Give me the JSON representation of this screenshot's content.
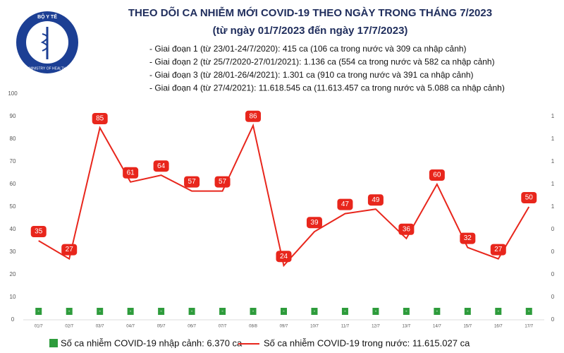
{
  "logo": {
    "top": "BỘ Y TẾ",
    "bottom": "MINISTRY OF HEALTH"
  },
  "chart_data": {
    "type": "line",
    "title": "THEO DÕI CA NHIỄM MỚI COVID-19 THEO NGÀY TRONG THÁNG 7/2023",
    "subtitle": "(từ ngày 01/7/2023 đến ngày 17/7/2023)",
    "annotations": [
      "- Giai đoạn 1 (từ 23/01-24/7/2020): 415 ca (106 ca trong nước và 309 ca nhập cảnh)",
      "- Giai đoạn 2 (từ 25/7/2020-27/01/2021): 1.136 ca (554 ca trong nước và 582 ca nhập cảnh)",
      "- Giai đoạn 3 (từ 28/01-26/4/2021): 1.301 ca (910 ca trong nước và 391 ca nhập cảnh)",
      "- Giai đoạn 4 (từ 27/4/2021): 11.618.545 ca (11.613.457 ca trong nước và 5.088 ca nhập cảnh)"
    ],
    "categories": [
      "01/7",
      "02/7",
      "03/7",
      "04/7",
      "05/7",
      "06/7",
      "07/7",
      "08/8",
      "09/7",
      "10/7",
      "11/7",
      "12/7",
      "13/7",
      "14/7",
      "15/7",
      "16/7",
      "17/7"
    ],
    "series": [
      {
        "name": "Số ca nhiễm COVID-19 nhập cảnh: 6.370 ca",
        "type": "bar",
        "axis": "y2",
        "color": "#2e9c3c",
        "values": [
          0,
          0,
          0,
          0,
          0,
          0,
          0,
          0,
          0,
          0,
          0,
          0,
          0,
          0,
          0,
          0,
          0
        ],
        "value_labels": [
          "-",
          "-",
          "-",
          "-",
          "-",
          "-",
          "-",
          "-",
          "-",
          "-",
          "-",
          "-",
          "-",
          "-",
          "-",
          "-",
          "-"
        ]
      },
      {
        "name": "Số ca nhiễm COVID-19 trong nước: 11.615.027 ca",
        "type": "line",
        "color": "#e8261c",
        "values": [
          35,
          27,
          85,
          61,
          64,
          57,
          57,
          86,
          24,
          39,
          47,
          49,
          36,
          60,
          32,
          27,
          50
        ]
      }
    ],
    "ylim": [
      0,
      100
    ],
    "yticks": [
      0,
      10,
      20,
      30,
      40,
      50,
      60,
      70,
      80,
      90,
      100
    ],
    "y2lim": [
      0,
      1
    ],
    "y2ticks": [
      {
        "value": 0,
        "label": "0"
      },
      {
        "value": 0.1,
        "label": "0"
      },
      {
        "value": 0.2,
        "label": "0"
      },
      {
        "value": 0.3,
        "label": "0"
      },
      {
        "value": 0.4,
        "label": "0"
      },
      {
        "value": 0.5,
        "label": "1"
      },
      {
        "value": 0.6,
        "label": "1"
      },
      {
        "value": 0.7,
        "label": "1"
      },
      {
        "value": 0.8,
        "label": "1"
      },
      {
        "value": 0.9,
        "label": "1"
      }
    ],
    "grid": false
  }
}
